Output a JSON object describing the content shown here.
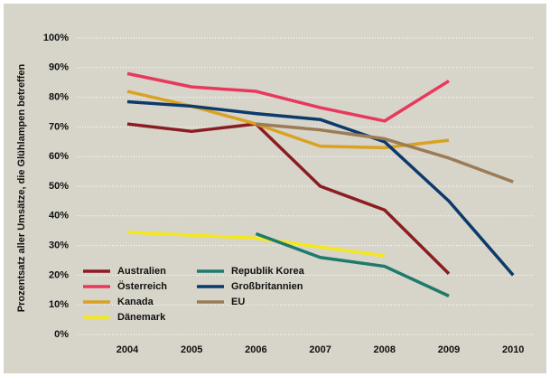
{
  "chart_data": {
    "type": "line",
    "ylabel": "Prozentsatz aller Umsätze, die Glühlampen betreffen",
    "categories": [
      "2004",
      "2005",
      "2006",
      "2007",
      "2008",
      "2009",
      "2010"
    ],
    "ylim": [
      0,
      100
    ],
    "yticks": [
      {
        "value": 0,
        "label": "0%"
      },
      {
        "value": 10,
        "label": "10%"
      },
      {
        "value": 20,
        "label": "20%"
      },
      {
        "value": 30,
        "label": "30%"
      },
      {
        "value": 40,
        "label": "40%"
      },
      {
        "value": 50,
        "label": "50%"
      },
      {
        "value": 60,
        "label": "60%"
      },
      {
        "value": 70,
        "label": "70%"
      },
      {
        "value": 80,
        "label": "80%"
      },
      {
        "value": 90,
        "label": "90%"
      },
      {
        "value": 100,
        "label": "100%"
      }
    ],
    "grid": true,
    "legend": "lower left",
    "series": [
      {
        "name": "Australien",
        "color": "#8b1c1f",
        "values": [
          71,
          68.5,
          71,
          50,
          42,
          20.5,
          null
        ]
      },
      {
        "name": "Österreich",
        "color": "#e8385c",
        "values": [
          88,
          83.5,
          82,
          76.5,
          72,
          85.5,
          null
        ]
      },
      {
        "name": "Kanada",
        "color": "#d9a222",
        "values": [
          82,
          77,
          71,
          63.5,
          63,
          65.5,
          null
        ]
      },
      {
        "name": "Dänemark",
        "color": "#f4e81c",
        "values": [
          34.5,
          33.5,
          32.5,
          29.5,
          26.5,
          null,
          null
        ]
      },
      {
        "name": "Republik Korea",
        "color": "#1e7a6c",
        "values": [
          null,
          null,
          34,
          26,
          23,
          13,
          null
        ]
      },
      {
        "name": "Großbritannien",
        "color": "#0c3a6b",
        "values": [
          78.5,
          77,
          74.5,
          72.5,
          65,
          45,
          20
        ]
      },
      {
        "name": "EU",
        "color": "#9c7b55",
        "values": [
          null,
          null,
          71,
          69,
          66,
          59.5,
          51.5
        ]
      }
    ]
  }
}
